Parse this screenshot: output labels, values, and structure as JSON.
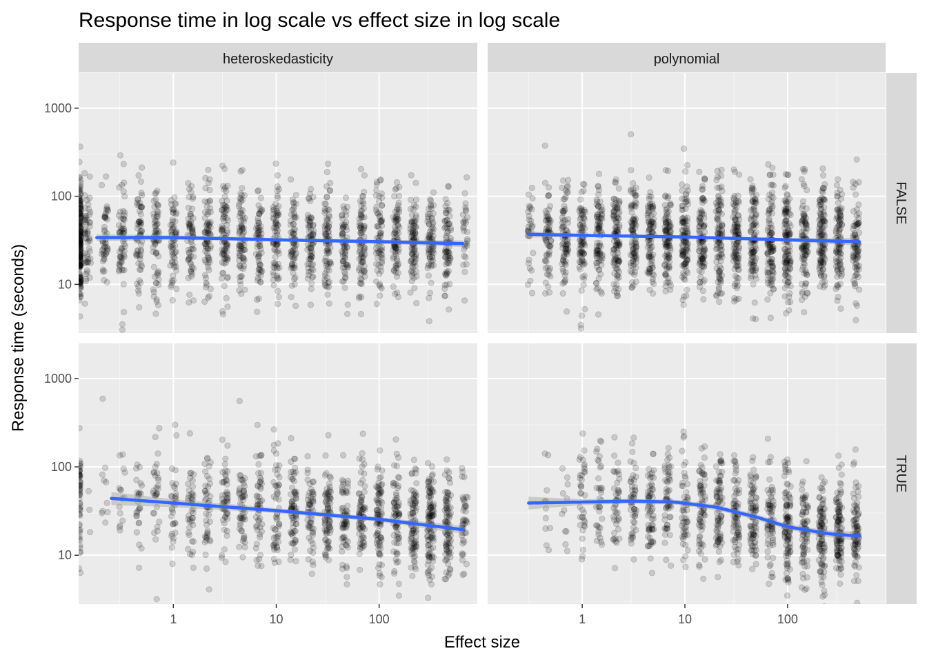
{
  "chart_data": {
    "type": "scatter",
    "title": "Response time in log scale vs effect size in log scale",
    "xlabel": "Effect size",
    "ylabel": "Response time (seconds)",
    "x_scale": "log10",
    "y_scale": "log10",
    "xlim": [
      0.12,
      900
    ],
    "ylim": [
      2.8,
      2500
    ],
    "x_ticks": [
      1,
      10,
      100
    ],
    "x_tick_labels": [
      "1",
      "10",
      "100"
    ],
    "y_ticks": [
      10,
      100,
      1000
    ],
    "y_tick_labels": [
      "10",
      "100",
      "1000"
    ],
    "grid": true,
    "legend": "none",
    "column_facets": [
      "heteroskedasticity",
      "polynomial"
    ],
    "row_facets": [
      "FALSE",
      "TRUE"
    ],
    "point_color": "#000000",
    "point_opacity": 0.15,
    "smooth_color": "#3366FF",
    "panels": [
      {
        "column": "heteroskedasticity",
        "row": "FALSE",
        "n_points": 1800,
        "x_range": [
          0.12,
          650
        ],
        "y_typical": [
          8,
          130
        ],
        "trend": [
          [
            0.18,
            34
          ],
          [
            1,
            34
          ],
          [
            10,
            32
          ],
          [
            100,
            30.5
          ],
          [
            650,
            29
          ]
        ],
        "band": [
          [
            0.18,
            31,
            37
          ],
          [
            1,
            32,
            36
          ],
          [
            10,
            31,
            33.5
          ],
          [
            100,
            29,
            32
          ],
          [
            650,
            26.5,
            31.5
          ]
        ]
      },
      {
        "column": "polynomial",
        "row": "FALSE",
        "n_points": 1900,
        "x_range": [
          0.3,
          500
        ],
        "y_typical": [
          8,
          130
        ],
        "trend": [
          [
            0.3,
            37
          ],
          [
            1,
            36
          ],
          [
            10,
            34.5
          ],
          [
            100,
            32
          ],
          [
            500,
            30.5
          ]
        ],
        "band": [
          [
            0.3,
            34,
            40
          ],
          [
            1,
            34.5,
            37.5
          ],
          [
            10,
            33.5,
            35.5
          ],
          [
            100,
            30.5,
            33.5
          ],
          [
            500,
            27.5,
            33.5
          ]
        ]
      },
      {
        "column": "heteroskedasticity",
        "row": "TRUE",
        "n_points": 1300,
        "x_range": [
          0.12,
          650
        ],
        "y_typical": [
          8,
          130
        ],
        "trend": [
          [
            0.25,
            44
          ],
          [
            1,
            39
          ],
          [
            10,
            32
          ],
          [
            100,
            25.5
          ],
          [
            650,
            19.5
          ]
        ],
        "band": [
          [
            0.25,
            37,
            52
          ],
          [
            1,
            35,
            43
          ],
          [
            10,
            30,
            34
          ],
          [
            100,
            24,
            27
          ],
          [
            650,
            17.5,
            21.5
          ]
        ]
      },
      {
        "column": "polynomial",
        "row": "TRUE",
        "n_points": 1200,
        "x_range": [
          0.3,
          500
        ],
        "y_typical": [
          7,
          120
        ],
        "trend": [
          [
            0.3,
            39
          ],
          [
            1,
            40
          ],
          [
            3,
            41
          ],
          [
            8,
            40
          ],
          [
            20,
            35
          ],
          [
            50,
            27
          ],
          [
            100,
            21
          ],
          [
            250,
            17.5
          ],
          [
            500,
            16.5
          ]
        ],
        "band": [
          [
            0.3,
            33,
            46
          ],
          [
            1,
            37,
            43
          ],
          [
            3,
            38.5,
            43.5
          ],
          [
            8,
            37.5,
            42.5
          ],
          [
            20,
            32.5,
            37.5
          ],
          [
            50,
            25,
            29
          ],
          [
            100,
            19.5,
            22.5
          ],
          [
            250,
            16,
            19
          ],
          [
            500,
            14.5,
            18.5
          ]
        ]
      }
    ]
  }
}
